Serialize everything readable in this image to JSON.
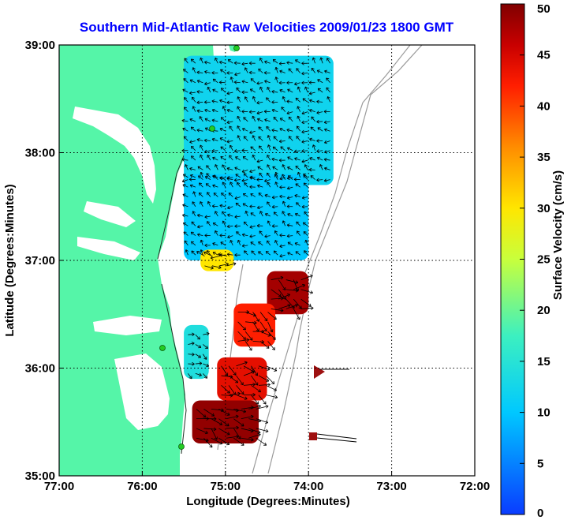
{
  "chart_data": {
    "type": "heatmap",
    "title": "Southern Mid-Atlantic Raw Velocities 2009/01/23 1800 GMT",
    "xlabel": "Longitude (Degrees:Minutes)",
    "ylabel": "Latitude (Degrees:Minutes)",
    "xlim": [
      -77,
      -72
    ],
    "ylim": [
      35,
      39
    ],
    "x_ticks": [
      {
        "value": -77,
        "label": "77:00"
      },
      {
        "value": -76,
        "label": "76:00"
      },
      {
        "value": -75,
        "label": "75:00"
      },
      {
        "value": -74,
        "label": "74:00"
      },
      {
        "value": -73,
        "label": "73:00"
      },
      {
        "value": -72,
        "label": "72:00"
      }
    ],
    "y_ticks": [
      {
        "value": 35,
        "label": "35:00"
      },
      {
        "value": 36,
        "label": "36:00"
      },
      {
        "value": 37,
        "label": "37:00"
      },
      {
        "value": 38,
        "label": "38:00"
      },
      {
        "value": 39,
        "label": "39:00"
      }
    ],
    "grid": true,
    "colorbar": {
      "label": "Surface Velocity (cm/s)",
      "min": 0,
      "max": 50,
      "ticks": [
        {
          "value": 0,
          "label": "0"
        },
        {
          "value": 5,
          "label": "5"
        },
        {
          "value": 10,
          "label": "10"
        },
        {
          "value": 15,
          "label": "15"
        },
        {
          "value": 20,
          "label": "20"
        },
        {
          "value": 25,
          "label": "25"
        },
        {
          "value": 30,
          "label": "30"
        },
        {
          "value": 35,
          "label": "35"
        },
        {
          "value": 40,
          "label": "40"
        },
        {
          "value": 45,
          "label": "45"
        },
        {
          "value": 50,
          "label": "50"
        }
      ]
    },
    "velocity_regions": [
      {
        "lon_range": [
          -75.5,
          -73.7
        ],
        "lat_range": [
          37.7,
          38.9
        ],
        "speed_cm_s": 12
      },
      {
        "lon_range": [
          -75.5,
          -74.0
        ],
        "lat_range": [
          37.0,
          37.8
        ],
        "speed_cm_s": 10
      },
      {
        "lon_range": [
          -75.3,
          -74.9
        ],
        "lat_range": [
          36.9,
          37.1
        ],
        "speed_cm_s": 30
      },
      {
        "lon_range": [
          -74.5,
          -74.0
        ],
        "lat_range": [
          36.5,
          36.9
        ],
        "speed_cm_s": 48
      },
      {
        "lon_range": [
          -74.9,
          -74.4
        ],
        "lat_range": [
          36.2,
          36.6
        ],
        "speed_cm_s": 42
      },
      {
        "lon_range": [
          -75.1,
          -74.5
        ],
        "lat_range": [
          35.7,
          36.1
        ],
        "speed_cm_s": 44
      },
      {
        "lon_range": [
          -75.4,
          -74.6
        ],
        "lat_range": [
          35.3,
          35.7
        ],
        "speed_cm_s": 49
      },
      {
        "lon_range": [
          -75.5,
          -75.2
        ],
        "lat_range": [
          35.9,
          36.4
        ],
        "speed_cm_s": 14
      }
    ],
    "colors": {
      "land": "#55f5a8",
      "title": "#0000ff",
      "shelf_contour": "#9a9a9a",
      "station": "#22cc22",
      "arrow": "#000000"
    }
  }
}
